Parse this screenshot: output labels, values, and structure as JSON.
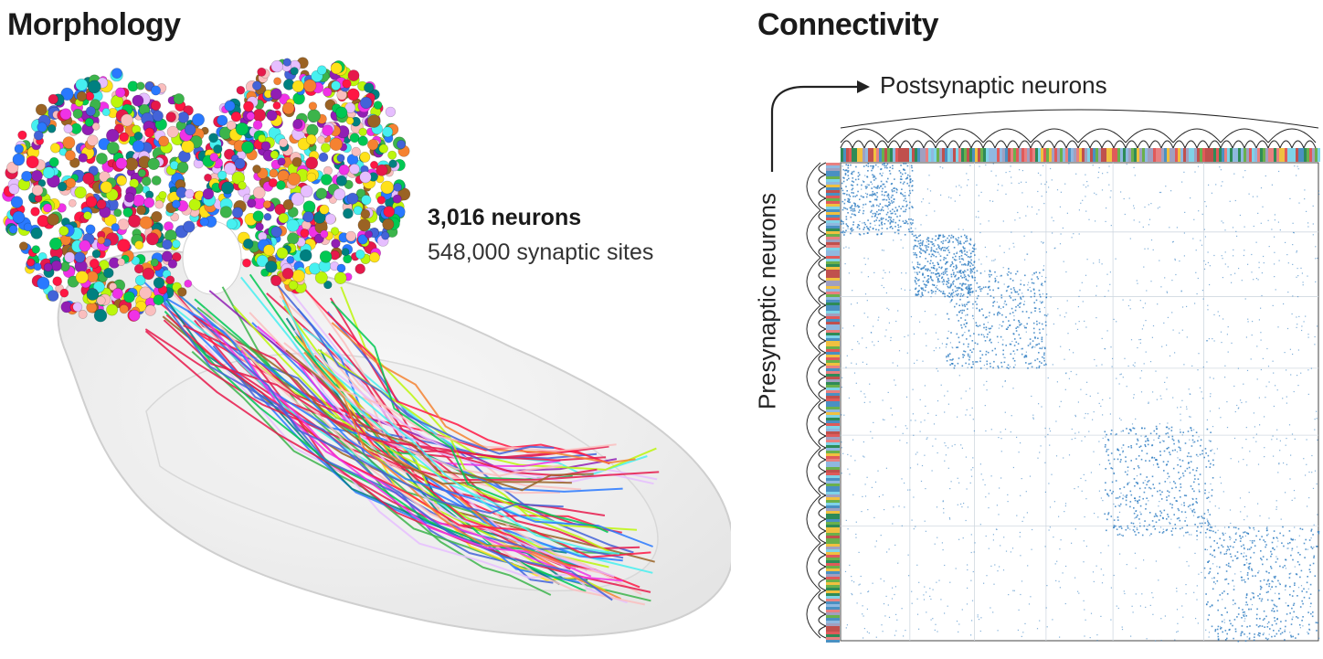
{
  "panels": {
    "morphology": {
      "title": "Morphology",
      "stats": {
        "neurons": "3,016 neurons",
        "synaptic_sites": "548,000 synaptic sites"
      }
    },
    "connectivity": {
      "title": "Connectivity",
      "x_axis_label": "Postsynaptic neurons",
      "y_axis_label": "Presynaptic neurons",
      "matrix_color": "#2a7ac0"
    }
  },
  "colors": {
    "sphere_palette": [
      "#e6194b",
      "#3cb44b",
      "#ffe119",
      "#4363d8",
      "#f58231",
      "#911eb4",
      "#46f0f0",
      "#f032e6",
      "#bcf60c",
      "#fabebe",
      "#008080",
      "#e6beff",
      "#9a6324",
      "#00c853",
      "#ff1744",
      "#2979ff"
    ],
    "strip_palette": [
      "#2e8b57",
      "#4a90c2",
      "#e05a5a",
      "#f0c040",
      "#8fb8e0",
      "#c0504d",
      "#6ab04c",
      "#a0a0c0",
      "#e88080",
      "#7fd3e8"
    ],
    "brain_shell": "#e8e8e8"
  }
}
